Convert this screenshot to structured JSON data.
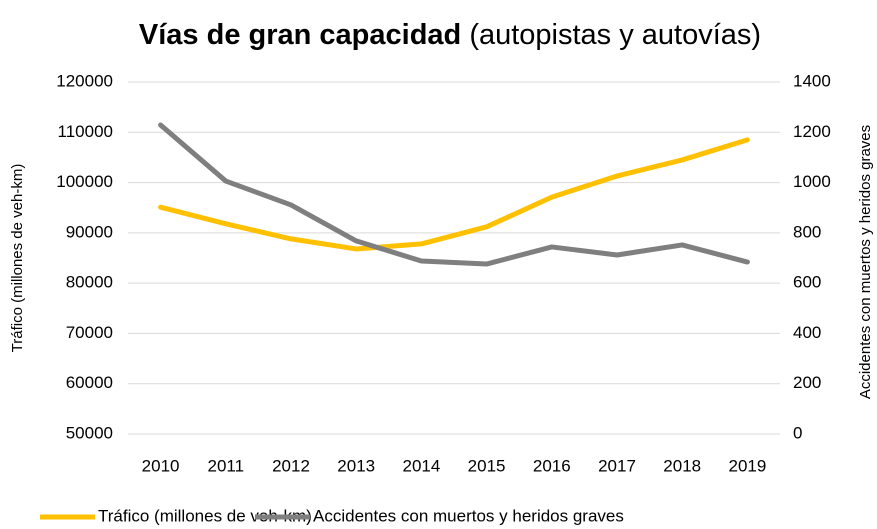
{
  "chart_data": {
    "type": "line",
    "title": "Vías de gran capacidad",
    "subtitle": "(autopistas y autovías)",
    "y_label": "Tráfico (millones de veh-km)",
    "y2_label": "Accidentes con muertos y heridos graves",
    "categories": [
      "2010",
      "2011",
      "2012",
      "2013",
      "2014",
      "2015",
      "2016",
      "2017",
      "2018",
      "2019"
    ],
    "series": [
      {
        "name": "Tráfico (millones de veh-km)",
        "color": "#ffc000",
        "values": [
          95100,
          91800,
          88800,
          86800,
          87800,
          91200,
          97100,
          101300,
          104500,
          108500
        ]
      },
      {
        "name": "Accidentes con muertos y heridos graves",
        "color": "#7f7f7f",
        "axis": "y2",
        "values": [
          1229,
          1006,
          911,
          768,
          688,
          676,
          744,
          712,
          752,
          684
        ]
      }
    ],
    "ylim": [
      50000,
      120000
    ],
    "yticks": [
      50000,
      60000,
      70000,
      80000,
      90000,
      100000,
      110000,
      120000
    ],
    "y2lim": [
      0,
      1400
    ],
    "y2ticks": [
      0,
      200,
      400,
      600,
      800,
      1000,
      1200,
      1400
    ],
    "grid": true,
    "legend": "bottom"
  }
}
